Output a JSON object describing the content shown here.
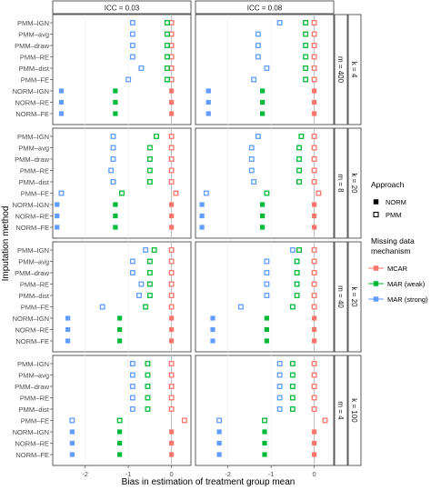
{
  "chart_data": {
    "type": "scatter",
    "facet_cols": [
      "ICC = 0.03",
      "ICC = 0.08"
    ],
    "facet_rows": [
      {
        "m": "m = 400",
        "k": "k = 4"
      },
      {
        "m": "m = 8",
        "k": "k = 20"
      },
      {
        "m": "m = 40",
        "k": "k = 20"
      },
      {
        "m": "m = 4",
        "k": "k = 100"
      }
    ],
    "y_categories": [
      "PMM–IGN",
      "PMM–avg",
      "PMM–draw",
      "PMM–RE",
      "PMM–dist",
      "PMM–FE",
      "NORM–IGN",
      "NORM–RE",
      "NORM–FE"
    ],
    "ylabel": "Imputation method",
    "xlabel": "Bias in estimation of treatment group mean",
    "x_ticks": [
      -2,
      -1,
      0
    ],
    "x_tick_labels": [
      "-2",
      "-1",
      "0"
    ],
    "xlim": [
      -2.75,
      0.45
    ],
    "reference_line_x": 0,
    "series": [
      {
        "name": "MCAR",
        "color": "#F8766D",
        "values": [
          [
            [
              0,
              0,
              0,
              0,
              0,
              0,
              0,
              0,
              0
            ],
            [
              0,
              0,
              0,
              0,
              0,
              0,
              0,
              0,
              0
            ]
          ],
          [
            [
              0,
              0,
              0,
              0,
              0,
              0.1,
              0,
              0,
              0
            ],
            [
              0,
              0,
              0,
              0,
              0,
              0.1,
              0,
              0,
              0
            ]
          ],
          [
            [
              0,
              0,
              0,
              0,
              0,
              0,
              0,
              0,
              0
            ],
            [
              0,
              0,
              0,
              0,
              0,
              0,
              0,
              0,
              0
            ]
          ],
          [
            [
              0,
              0,
              0,
              0,
              0,
              0.3,
              0,
              0,
              0
            ],
            [
              0,
              0,
              0,
              0,
              0,
              0.25,
              0,
              0,
              0
            ]
          ]
        ]
      },
      {
        "name": "MAR (weak)",
        "color": "#00BA38",
        "values": [
          [
            [
              -0.1,
              -0.1,
              -0.1,
              -0.1,
              -0.1,
              -0.1,
              -1.3,
              -1.3,
              -1.3
            ],
            [
              -0.2,
              -0.2,
              -0.2,
              -0.2,
              -0.2,
              -0.2,
              -1.2,
              -1.2,
              -1.2
            ]
          ],
          [
            [
              -0.35,
              -0.5,
              -0.5,
              -0.5,
              -0.5,
              -1.15,
              -1.3,
              -1.3,
              -1.3
            ],
            [
              -0.3,
              -0.35,
              -0.35,
              -0.35,
              -0.35,
              -1.1,
              -1.2,
              -1.2,
              -1.2
            ]
          ],
          [
            [
              -0.4,
              -0.5,
              -0.5,
              -0.5,
              -0.5,
              -0.6,
              -1.2,
              -1.2,
              -1.2
            ],
            [
              -0.35,
              -0.4,
              -0.4,
              -0.4,
              -0.4,
              -0.5,
              -1.1,
              -1.1,
              -1.1
            ]
          ],
          [
            [
              -0.55,
              -0.55,
              -0.55,
              -0.55,
              -0.55,
              -1.2,
              -1.2,
              -1.2,
              -1.2
            ],
            [
              -0.5,
              -0.5,
              -0.5,
              -0.5,
              -0.5,
              -1.15,
              -1.15,
              -1.15,
              -1.15
            ]
          ]
        ]
      },
      {
        "name": "MAR (strong)",
        "color": "#619CFF",
        "values": [
          [
            [
              -0.9,
              -0.9,
              -0.9,
              -0.9,
              -0.7,
              -1.0,
              -2.55,
              -2.55,
              -2.55
            ],
            [
              -0.8,
              -1.3,
              -1.3,
              -1.3,
              -1.1,
              -1.4,
              -2.45,
              -2.45,
              -2.45
            ]
          ],
          [
            [
              -1.35,
              -1.35,
              -1.35,
              -1.4,
              -1.35,
              -2.55,
              -2.65,
              -2.65,
              -2.65
            ],
            [
              -1.3,
              -1.45,
              -1.45,
              -1.45,
              -1.4,
              -2.5,
              -2.6,
              -2.6,
              -2.6
            ]
          ],
          [
            [
              -0.6,
              -0.9,
              -0.9,
              -0.7,
              -0.75,
              -1.6,
              -2.4,
              -2.4,
              -2.4
            ],
            [
              -0.5,
              -1.1,
              -1.1,
              -1.1,
              -1.1,
              -1.7,
              -2.35,
              -2.35,
              -2.35
            ]
          ],
          [
            [
              -0.9,
              -0.9,
              -0.9,
              -0.9,
              -0.9,
              -2.3,
              -2.3,
              -2.3,
              -2.3
            ],
            [
              -0.8,
              -0.8,
              -0.8,
              -0.8,
              -0.8,
              -2.2,
              -2.2,
              -2.2,
              -2.2
            ]
          ]
        ]
      }
    ],
    "approaches": [
      {
        "name": "NORM",
        "symbol": "filled square"
      },
      {
        "name": "PMM",
        "symbol": "open square"
      }
    ],
    "legend": {
      "placement": "right",
      "approach_title": "Approach",
      "mechanism_title_line1": "Missing data",
      "mechanism_title_line2": "mechanism"
    }
  }
}
